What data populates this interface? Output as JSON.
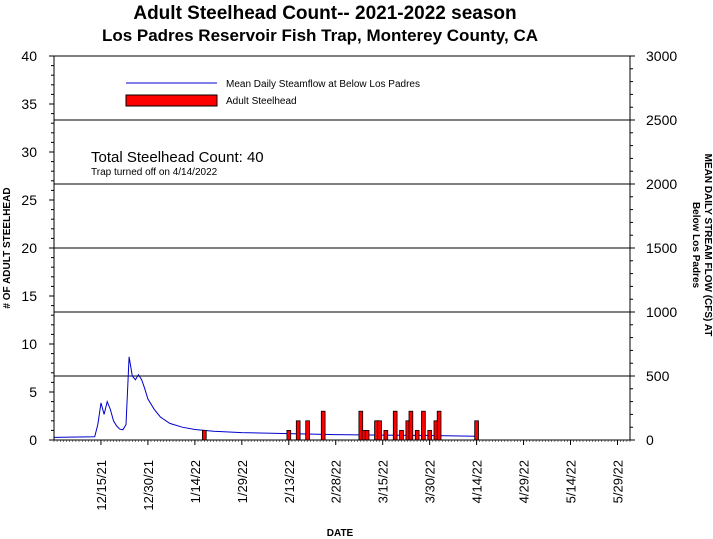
{
  "chart_data": {
    "type": "bar",
    "title": "Adult Steelhead Count-- 2021-2022 season",
    "subtitle": "Los Padres Reservoir Fish Trap, Monterey County, CA",
    "xlabel": "DATE",
    "ylabel_left": "# OF ADULT STEELHEAD",
    "ylabel_right_line1": "MEAN DAILY STREAM FLOW (CFS) AT",
    "ylabel_right_line2": "Below Los Padres",
    "ylim_left": [
      0,
      40
    ],
    "ylim_right": [
      0,
      3000
    ],
    "y_ticks_left": [
      "0",
      "5",
      "10",
      "15",
      "20",
      "25",
      "30",
      "35",
      "40"
    ],
    "y_ticks_right": [
      "0",
      "500",
      "1000",
      "1500",
      "2000",
      "2500",
      "3000"
    ],
    "x_ticks": [
      "12/15/21",
      "12/30/21",
      "1/14/22",
      "1/29/22",
      "2/13/22",
      "2/28/22",
      "3/15/22",
      "3/30/22",
      "4/14/22",
      "4/29/22",
      "5/14/22",
      "5/29/22"
    ],
    "xlim_dates": [
      "2021-11-30",
      "2022-06-02"
    ],
    "gridlines_right_axis": [
      500,
      1000,
      1500,
      2000,
      2500
    ],
    "legend": {
      "position": "top-left",
      "line_label": "Mean Daily Steamflow at Below Los Padres",
      "bar_label": "Adult Steelhead"
    },
    "annotation_total": "Total Steelhead Count: 40",
    "annotation_note": "Trap turned off on 4/14/2022",
    "colors": {
      "bars": "#ff0000",
      "bar_edge": "#000000",
      "line": "#0000cc",
      "grid": "#000000"
    },
    "bar_series": {
      "name": "Adult Steelhead",
      "dates": [
        "2022-01-17",
        "2022-02-13",
        "2022-02-16",
        "2022-02-19",
        "2022-02-24",
        "2022-03-08",
        "2022-03-09",
        "2022-03-10",
        "2022-03-13",
        "2022-03-14",
        "2022-03-16",
        "2022-03-19",
        "2022-03-21",
        "2022-03-23",
        "2022-03-24",
        "2022-03-26",
        "2022-03-28",
        "2022-03-30",
        "2022-04-01",
        "2022-04-02",
        "2022-04-14"
      ],
      "values": [
        1,
        1,
        2,
        2,
        3,
        3,
        1,
        1,
        2,
        2,
        1,
        3,
        1,
        2,
        3,
        1,
        3,
        1,
        2,
        3,
        2
      ]
    },
    "line_series": {
      "name": "Mean Daily Steamflow at Below Los Padres",
      "dates": [
        "2021-11-30",
        "2021-12-13",
        "2021-12-14",
        "2021-12-15",
        "2021-12-16",
        "2021-12-17",
        "2021-12-18",
        "2021-12-19",
        "2021-12-20",
        "2021-12-21",
        "2021-12-22",
        "2021-12-23",
        "2021-12-24",
        "2021-12-25",
        "2021-12-26",
        "2021-12-27",
        "2021-12-28",
        "2021-12-29",
        "2021-12-30",
        "2022-01-01",
        "2022-01-03",
        "2022-01-06",
        "2022-01-10",
        "2022-01-14",
        "2022-01-20",
        "2022-01-29",
        "2022-02-13",
        "2022-02-28",
        "2022-03-15",
        "2022-03-30",
        "2022-04-14"
      ],
      "values": [
        20,
        25,
        120,
        290,
        200,
        300,
        240,
        150,
        110,
        85,
        80,
        120,
        650,
        500,
        470,
        510,
        470,
        400,
        320,
        240,
        180,
        130,
        100,
        82,
        68,
        58,
        50,
        42,
        38,
        35,
        30
      ]
    }
  }
}
